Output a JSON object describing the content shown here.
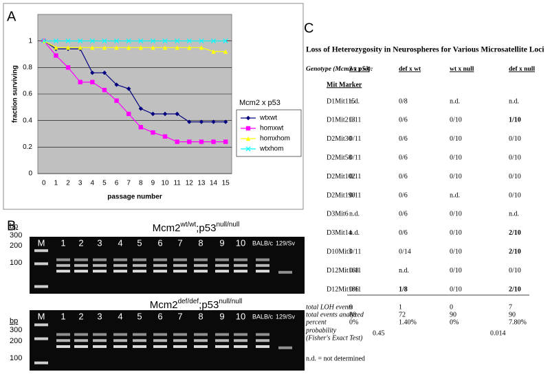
{
  "chart_data": {
    "type": "line",
    "panel_label": "A",
    "x_label": "passage number",
    "y_label": "fraction surviving",
    "legend_title": "Mcm2 x p53",
    "categories": [
      "0",
      "1",
      "2",
      "3",
      "4",
      "5",
      "6",
      "7",
      "8",
      "9",
      "10",
      "11",
      "12",
      "13",
      "14",
      "15"
    ],
    "ylim": [
      0,
      1.2
    ],
    "yticks": [
      0,
      0.2,
      0.4,
      0.6,
      0.8,
      1
    ],
    "grid": true,
    "legend": "right",
    "series": [
      {
        "name": "wtxwt",
        "color": "#000080",
        "marker": "diamond",
        "values": [
          1,
          0.94,
          0.94,
          0.94,
          0.76,
          0.76,
          0.67,
          0.64,
          0.49,
          0.45,
          0.45,
          0.45,
          0.39,
          0.39,
          0.39,
          0.39
        ]
      },
      {
        "name": "homxwt",
        "color": "#ff00ff",
        "marker": "square",
        "values": [
          1,
          0.89,
          0.8,
          0.69,
          0.69,
          0.63,
          0.55,
          0.45,
          0.35,
          0.31,
          0.28,
          0.24,
          0.24,
          0.24,
          0.24,
          0.24
        ]
      },
      {
        "name": "homxhom",
        "color": "#ffff00",
        "marker": "triangle",
        "values": [
          1,
          0.95,
          0.95,
          0.95,
          0.95,
          0.95,
          0.95,
          0.95,
          0.95,
          0.95,
          0.95,
          0.95,
          0.95,
          0.95,
          0.92,
          0.92
        ]
      },
      {
        "name": "wtxhom",
        "color": "#00ffff",
        "marker": "x",
        "values": [
          1,
          1,
          1,
          1,
          1,
          1,
          1,
          1,
          1,
          1,
          1,
          1,
          1,
          1,
          1,
          1
        ]
      }
    ]
  },
  "gels": {
    "panel_label": "B",
    "bp_label": "bp",
    "panels": [
      {
        "title": [
          "Mcm2",
          "wt/wt",
          ";p53",
          "null/null"
        ],
        "size_labels": [
          "300",
          "200",
          "100"
        ],
        "lanes": [
          "M",
          "1",
          "2",
          "3",
          "4",
          "5",
          "6",
          "7",
          "8",
          "9",
          "10",
          "BALB/c",
          "129/Sv"
        ]
      },
      {
        "title": [
          "Mcm2",
          "def/def",
          ";p53",
          "null/null"
        ],
        "size_labels": [
          "300",
          "200",
          "100"
        ],
        "lanes": [
          "M",
          "1",
          "2",
          "3",
          "4",
          "5",
          "6",
          "7",
          "8",
          "9",
          "10",
          "BALB/c",
          "129/Sv"
        ]
      }
    ]
  },
  "table": {
    "panel_label": "C",
    "title": "Loss of Heterozygosity in Neurospheres for Various Microsatellite Loci",
    "header": [
      "Genotype (Mcm2 x p53):",
      "wt x wt",
      "def x wt",
      "wt x null",
      "def x null"
    ],
    "subheader": "Mit Marker",
    "rows": [
      [
        "D1Mit115",
        "n.d.",
        "0/8",
        "n.d.",
        "n.d."
      ],
      [
        "D1Mit213",
        "0/11",
        "0/6",
        "0/10",
        "1/10"
      ],
      [
        "D2Mit30",
        "0/11",
        "0/6",
        "0/10",
        "0/10"
      ],
      [
        "D2Mit58",
        "0/11",
        "0/6",
        "0/10",
        "0/10"
      ],
      [
        "D2Mit102",
        "0/11",
        "0/6",
        "0/10",
        "0/10"
      ],
      [
        "D2Mit190",
        "0/11",
        "0/6",
        "n.d.",
        "0/10"
      ],
      [
        "D3Mit6",
        "n.d.",
        "0/6",
        "0/10",
        "n.d."
      ],
      [
        "D3Mit14",
        "n.d.",
        "0/6",
        "0/10",
        "2/10"
      ],
      [
        "D10Mit3",
        "0/11",
        "0/14",
        "0/10",
        "2/10"
      ],
      [
        "D12Mit168",
        "0/11",
        "n.d.",
        "0/10",
        "0/10"
      ],
      [
        "D12Mit186",
        "0/11",
        "1/8",
        "0/10",
        "2/10"
      ]
    ],
    "bold_cells": [
      "1.4",
      "7.4",
      "8.4",
      "10.2",
      "10.4"
    ],
    "summary": [
      [
        "total LOH events",
        "0",
        "1",
        "0",
        "7"
      ],
      [
        "total events analyzed",
        "88",
        "72",
        "90",
        "90"
      ],
      [
        "percent",
        "0%",
        "1.40%",
        "0%",
        "7.80%"
      ]
    ],
    "probability": {
      "label": "probability",
      "sublabel": "(Fisher's Exact Test)",
      "values": [
        "0.45",
        "0.014"
      ]
    },
    "footnote": "n.d. = not determined"
  }
}
